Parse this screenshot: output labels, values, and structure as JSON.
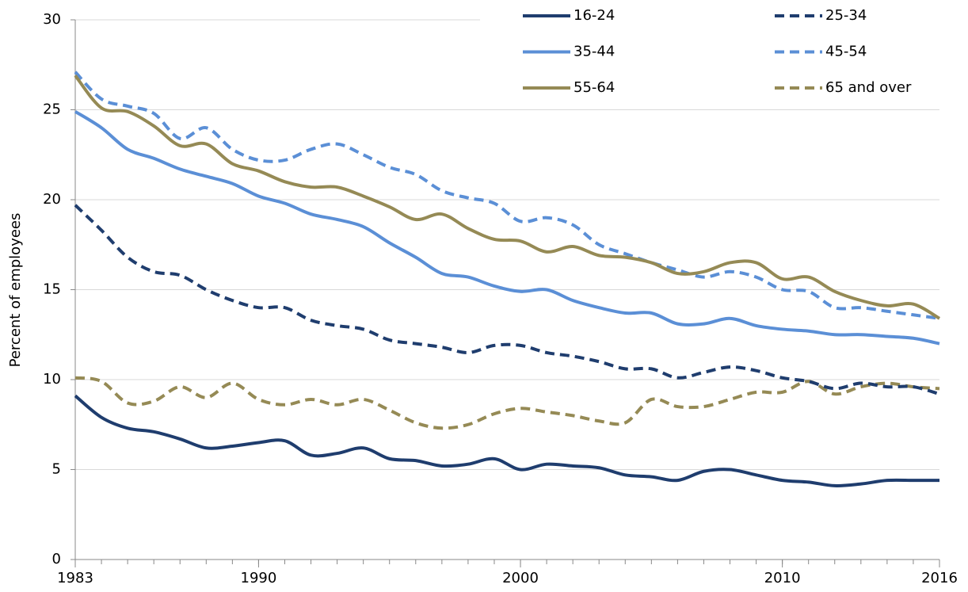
{
  "chart_data": {
    "type": "line",
    "y_label": "Percent of employees",
    "x": [
      1983,
      1984,
      1985,
      1986,
      1987,
      1988,
      1989,
      1990,
      1991,
      1992,
      1993,
      1994,
      1995,
      1996,
      1997,
      1998,
      1999,
      2000,
      2001,
      2002,
      2003,
      2004,
      2005,
      2006,
      2007,
      2008,
      2009,
      2010,
      2011,
      2012,
      2013,
      2014,
      2015,
      2016
    ],
    "xlim": [
      1983,
      2016
    ],
    "xticks": [
      1983,
      1990,
      2000,
      2010,
      2016
    ],
    "ylim": [
      0,
      30
    ],
    "yticks": [
      0,
      5,
      10,
      15,
      20,
      25,
      30
    ],
    "grid": true,
    "legend": "top-right",
    "series": [
      {
        "name": "16-24",
        "color": "#1f3d6e",
        "dashed": false,
        "values": [
          9.1,
          7.9,
          7.3,
          7.1,
          6.7,
          6.2,
          6.3,
          6.5,
          6.6,
          5.8,
          5.9,
          6.2,
          5.6,
          5.5,
          5.2,
          5.3,
          5.6,
          5.0,
          5.3,
          5.2,
          5.1,
          4.7,
          4.6,
          4.4,
          4.9,
          5.0,
          4.7,
          4.4,
          4.3,
          4.1,
          4.2,
          4.4,
          4.4,
          4.4
        ]
      },
      {
        "name": "25-34",
        "color": "#1f3d6e",
        "dashed": true,
        "values": [
          19.7,
          18.3,
          16.8,
          16.0,
          15.8,
          15.0,
          14.4,
          14.0,
          14.0,
          13.3,
          13.0,
          12.8,
          12.2,
          12.0,
          11.8,
          11.5,
          11.9,
          11.9,
          11.5,
          11.3,
          11.0,
          10.6,
          10.6,
          10.1,
          10.4,
          10.7,
          10.5,
          10.1,
          9.9,
          9.5,
          9.8,
          9.6,
          9.6,
          9.2
        ]
      },
      {
        "name": "35-44",
        "color": "#5b8fd6",
        "dashed": false,
        "values": [
          24.9,
          24.0,
          22.8,
          22.3,
          21.7,
          21.3,
          20.9,
          20.2,
          19.8,
          19.2,
          18.9,
          18.5,
          17.6,
          16.8,
          15.9,
          15.7,
          15.2,
          14.9,
          15.0,
          14.4,
          14.0,
          13.7,
          13.7,
          13.1,
          13.1,
          13.4,
          13.0,
          12.8,
          12.7,
          12.5,
          12.5,
          12.4,
          12.3,
          12.0
        ]
      },
      {
        "name": "45-54",
        "color": "#5b8fd6",
        "dashed": true,
        "values": [
          27.1,
          25.6,
          25.2,
          24.8,
          23.4,
          24.0,
          22.8,
          22.2,
          22.2,
          22.8,
          23.1,
          22.5,
          21.8,
          21.4,
          20.5,
          20.1,
          19.8,
          18.8,
          19.0,
          18.6,
          17.5,
          17.0,
          16.5,
          16.1,
          15.7,
          16.0,
          15.7,
          15.0,
          14.9,
          14.0,
          14.0,
          13.8,
          13.6,
          13.4
        ]
      },
      {
        "name": "55-64",
        "color": "#958a55",
        "dashed": false,
        "values": [
          26.9,
          25.1,
          24.9,
          24.1,
          23.0,
          23.1,
          22.0,
          21.6,
          21.0,
          20.7,
          20.7,
          20.2,
          19.6,
          18.9,
          19.2,
          18.4,
          17.8,
          17.7,
          17.1,
          17.4,
          16.9,
          16.8,
          16.5,
          15.9,
          16.0,
          16.5,
          16.5,
          15.6,
          15.7,
          14.9,
          14.4,
          14.1,
          14.2,
          13.4
        ]
      },
      {
        "name": "65 and over",
        "color": "#958a55",
        "dashed": true,
        "values": [
          10.1,
          9.9,
          8.7,
          8.8,
          9.6,
          9.0,
          9.8,
          8.9,
          8.6,
          8.9,
          8.6,
          8.9,
          8.3,
          7.6,
          7.3,
          7.5,
          8.1,
          8.4,
          8.2,
          8.0,
          7.7,
          7.6,
          8.9,
          8.5,
          8.5,
          8.9,
          9.3,
          9.3,
          9.9,
          9.2,
          9.6,
          9.8,
          9.6,
          9.5
        ]
      }
    ]
  }
}
